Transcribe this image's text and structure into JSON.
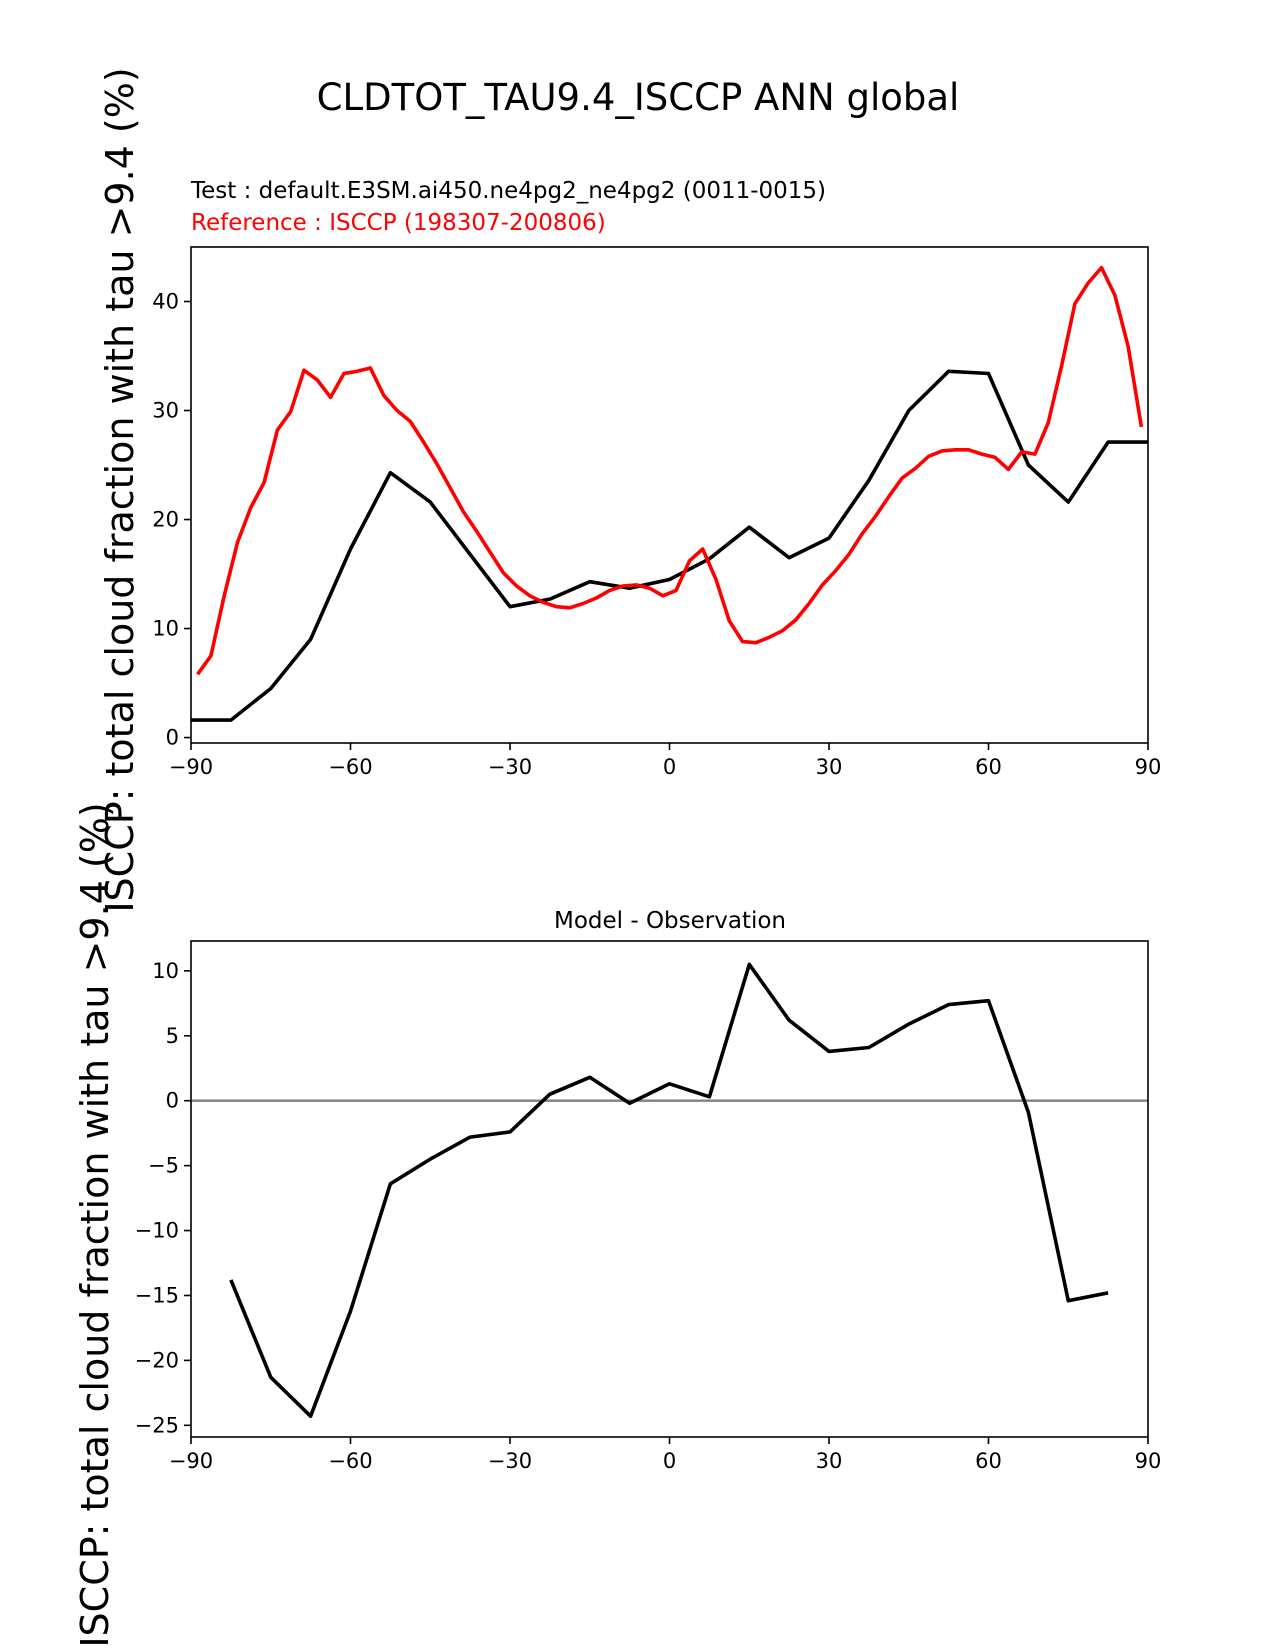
{
  "figure_title": "CLDTOT_TAU9.4_ISCCP ANN global",
  "colors": {
    "test": "#000000",
    "reference": "#ff0000",
    "zero_line": "#808080"
  },
  "chart_data": [
    {
      "type": "line",
      "test_label": "Test : default.E3SM.ai450.ne4pg2_ne4pg2 (0011-0015)",
      "reference_label": "Reference : ISCCP (198307-200806)",
      "ylabel": "ISCCP: total cloud fraction with tau >9.4 (%)",
      "xlim": [
        -90,
        90
      ],
      "ylim": [
        -0.5,
        45
      ],
      "xticks": [
        -90,
        -60,
        -30,
        0,
        30,
        60,
        90
      ],
      "xtick_labels": [
        "−90",
        "−60",
        "−30",
        "0",
        "30",
        "60",
        "90"
      ],
      "yticks": [
        0,
        10,
        20,
        30,
        40
      ],
      "ytick_labels": [
        "0",
        "10",
        "20",
        "30",
        "40"
      ],
      "series": [
        {
          "role": "test",
          "x": [
            -90,
            -82.5,
            -75,
            -67.5,
            -60,
            -52.5,
            -45,
            -37.5,
            -30,
            -22.5,
            -15,
            -7.5,
            0,
            7.5,
            15,
            22.5,
            30,
            37.5,
            45,
            52.5,
            60,
            67.5,
            75,
            82.5,
            90
          ],
          "y": [
            1.6,
            1.6,
            4.5,
            9.0,
            17.3,
            24.3,
            21.6,
            16.8,
            12.0,
            12.7,
            14.3,
            13.7,
            14.5,
            16.4,
            19.3,
            16.5,
            18.3,
            23.6,
            30.0,
            33.6,
            33.4,
            25.0,
            21.6,
            27.1,
            27.1
          ]
        },
        {
          "role": "reference",
          "x": [
            -88.75,
            -86.25,
            -83.75,
            -81.25,
            -78.75,
            -76.25,
            -73.75,
            -71.25,
            -68.75,
            -66.25,
            -63.75,
            -61.25,
            -58.75,
            -56.25,
            -53.75,
            -51.25,
            -48.75,
            -46.25,
            -43.75,
            -41.25,
            -38.75,
            -36.25,
            -33.75,
            -31.25,
            -28.75,
            -26.25,
            -23.75,
            -21.25,
            -18.75,
            -16.25,
            -13.75,
            -11.25,
            -8.75,
            -6.25,
            -3.75,
            -1.25,
            1.25,
            3.75,
            6.25,
            8.75,
            11.25,
            13.75,
            16.25,
            18.75,
            21.25,
            23.75,
            26.25,
            28.75,
            31.25,
            33.75,
            36.25,
            38.75,
            41.25,
            43.75,
            46.25,
            48.75,
            51.25,
            53.75,
            56.25,
            58.75,
            61.25,
            63.75,
            66.25,
            68.75,
            71.25,
            73.75,
            76.25,
            78.75,
            81.25,
            83.75,
            86.25,
            88.75
          ],
          "y": [
            5.8,
            7.5,
            13.0,
            17.9,
            21.1,
            23.4,
            28.2,
            29.9,
            33.7,
            32.8,
            31.2,
            33.4,
            33.6,
            33.9,
            31.4,
            30.0,
            29.0,
            27.1,
            25.1,
            22.9,
            20.7,
            18.9,
            17.0,
            15.1,
            13.9,
            13.0,
            12.4,
            12.0,
            11.9,
            12.3,
            12.8,
            13.5,
            13.9,
            14.0,
            13.7,
            13.0,
            13.5,
            16.2,
            17.3,
            14.5,
            10.7,
            8.8,
            8.7,
            9.2,
            9.8,
            10.8,
            12.3,
            14.0,
            15.3,
            16.8,
            18.7,
            20.3,
            22.1,
            23.8,
            24.7,
            25.8,
            26.3,
            26.4,
            26.4,
            26.0,
            25.7,
            24.6,
            26.2,
            26.0,
            28.9,
            34.1,
            39.8,
            41.7,
            43.1,
            40.6,
            35.9,
            28.5
          ]
        }
      ]
    },
    {
      "type": "line",
      "title": "Model - Observation",
      "ylabel": "ISCCP: total cloud fraction with tau >9.4 (%)",
      "xlim": [
        -90,
        90
      ],
      "ylim": [
        -25.9,
        12.3
      ],
      "xticks": [
        -90,
        -60,
        -30,
        0,
        30,
        60,
        90
      ],
      "xtick_labels": [
        "−90",
        "−60",
        "−30",
        "0",
        "30",
        "60",
        "90"
      ],
      "yticks": [
        10,
        5,
        0,
        -5,
        -10,
        -15,
        -20,
        -25
      ],
      "ytick_labels": [
        "10",
        "5",
        "0",
        "−5",
        "−10",
        "−15",
        "−20",
        "−25"
      ],
      "zero_line": true,
      "series": [
        {
          "role": "difference",
          "x": [
            -82.5,
            -75,
            -67.5,
            -60,
            -52.5,
            -45,
            -37.5,
            -30,
            -22.5,
            -15,
            -7.5,
            0,
            7.5,
            15,
            22.5,
            30,
            37.5,
            45,
            52.5,
            60,
            67.5,
            75,
            82.5
          ],
          "y": [
            -13.8,
            -21.3,
            -24.3,
            -16.2,
            -6.4,
            -4.5,
            -2.8,
            -2.4,
            0.5,
            1.8,
            -0.2,
            1.3,
            0.3,
            10.5,
            6.2,
            3.8,
            4.1,
            5.9,
            7.4,
            7.7,
            -0.9,
            -15.4,
            -14.8
          ]
        }
      ]
    }
  ]
}
